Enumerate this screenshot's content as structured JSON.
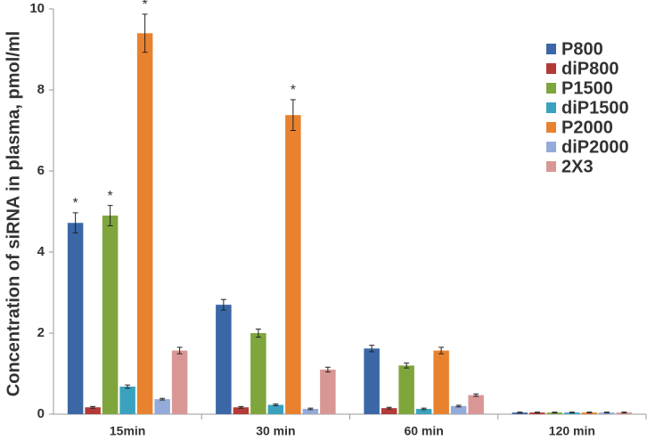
{
  "chart_data": {
    "type": "bar",
    "ylabel": "Concentration of siRNA in plasma, pmol/ml",
    "categories": [
      "15min",
      "30 min",
      "60 min",
      "120 min"
    ],
    "series": [
      {
        "name": "P800",
        "color": "#3b67a6",
        "values": [
          4.72,
          2.7,
          1.62,
          0.04
        ],
        "errors": [
          0.25,
          0.13,
          0.08,
          0.01
        ]
      },
      {
        "name": "diP800",
        "color": "#b33a36",
        "values": [
          0.17,
          0.17,
          0.15,
          0.04
        ],
        "errors": [
          0.02,
          0.02,
          0.02,
          0.01
        ]
      },
      {
        "name": "P1500",
        "color": "#7fa53d",
        "values": [
          4.9,
          2.0,
          1.2,
          0.04
        ],
        "errors": [
          0.25,
          0.1,
          0.06,
          0.01
        ]
      },
      {
        "name": "diP1500",
        "color": "#3aa2bf",
        "values": [
          0.68,
          0.23,
          0.13,
          0.04
        ],
        "errors": [
          0.04,
          0.02,
          0.02,
          0.01
        ]
      },
      {
        "name": "P2000",
        "color": "#e9822e",
        "values": [
          9.4,
          7.38,
          1.57,
          0.04
        ],
        "errors": [
          0.47,
          0.38,
          0.08,
          0.01
        ]
      },
      {
        "name": "diP2000",
        "color": "#94aad8",
        "values": [
          0.37,
          0.13,
          0.2,
          0.04
        ],
        "errors": [
          0.02,
          0.02,
          0.02,
          0.01
        ]
      },
      {
        "name": "2X3",
        "color": "#d89795",
        "values": [
          1.57,
          1.1,
          0.47,
          0.04
        ],
        "errors": [
          0.08,
          0.06,
          0.03,
          0.01
        ]
      }
    ],
    "annotations": [
      {
        "text": "*",
        "series": "P800",
        "category": "15min"
      },
      {
        "text": "*",
        "series": "P1500",
        "category": "15min"
      },
      {
        "text": "*",
        "series": "P2000",
        "category": "15min"
      },
      {
        "text": "*",
        "series": "P2000",
        "category": "30 min"
      }
    ],
    "ylim": [
      0,
      10
    ],
    "yticks": [
      0,
      2,
      4,
      6,
      8,
      10
    ],
    "grid": false,
    "legend": "right"
  }
}
